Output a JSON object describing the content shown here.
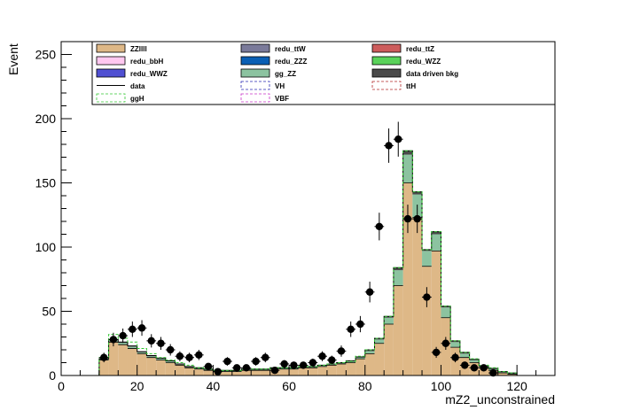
{
  "chart_data": {
    "type": "bar",
    "xlabel": "mZ2_unconstrained",
    "ylabel": "Event",
    "xlim": [
      0,
      130
    ],
    "ylim": [
      0,
      260
    ],
    "x_ticks": [
      0,
      20,
      40,
      60,
      80,
      100,
      120
    ],
    "y_ticks": [
      0,
      50,
      100,
      150,
      200,
      250
    ],
    "bin_width": 2.5,
    "bin_edges_start": 10,
    "grid": false,
    "legend": {
      "placement": "top",
      "columns": 3,
      "entries": [
        {
          "label": "ZZllll",
          "style": "fill",
          "color": "#deb887"
        },
        {
          "label": "redu_ttW",
          "style": "fill",
          "color": "#7a7a9a"
        },
        {
          "label": "redu_ttZ",
          "style": "fill",
          "color": "#cd5c5c"
        },
        {
          "label": "redu_bbH",
          "style": "fill",
          "color": "#ffc8f0"
        },
        {
          "label": "redu_ZZZ",
          "style": "fill",
          "color": "#0a5fb4"
        },
        {
          "label": "redu_WZZ",
          "style": "fill",
          "color": "#5ad25a"
        },
        {
          "label": "redu_WWZ",
          "style": "fill",
          "color": "#5050d2"
        },
        {
          "label": "gg_ZZ",
          "style": "fill",
          "color": "#8cc3a0"
        },
        {
          "label": "data driven bkg",
          "style": "fill",
          "color": "#4a4a4a"
        },
        {
          "label": "data",
          "style": "line",
          "color": "#000000"
        },
        {
          "label": "VH",
          "style": "dashed",
          "color": "#2a2ab4"
        },
        {
          "label": "ttH",
          "style": "dashed",
          "color": "#b4282a"
        },
        {
          "label": "ggH",
          "style": "dashed",
          "color": "#32c832"
        },
        {
          "label": "VBF",
          "style": "dashed",
          "color": "#c832c8"
        }
      ]
    },
    "series": [
      {
        "name": "ZZllll",
        "color": "#deb887",
        "values": [
          12,
          26,
          24,
          21,
          17,
          14,
          12,
          10,
          8,
          6,
          5,
          4,
          3,
          3,
          3,
          4,
          4,
          4,
          5,
          5,
          5,
          6,
          6,
          7,
          8,
          9,
          10,
          13,
          17,
          25,
          40,
          70,
          150,
          123,
          85,
          97,
          45,
          22,
          14,
          10,
          6,
          4,
          2,
          1
        ]
      },
      {
        "name": "gg_ZZ",
        "color": "#8cc3a0",
        "values": [
          0.5,
          1.5,
          1.5,
          1.5,
          1,
          1,
          1,
          1,
          0.5,
          0.5,
          0.5,
          0.5,
          0.5,
          0.5,
          0.5,
          0.5,
          0.5,
          0.5,
          0.5,
          0.5,
          0.5,
          0.5,
          0.5,
          0.5,
          0.5,
          0.5,
          1,
          1,
          2,
          3,
          5,
          12,
          22,
          18,
          12,
          13,
          8,
          4,
          3,
          2,
          1,
          1,
          0.5,
          0.5
        ]
      },
      {
        "name": "data driven bkg",
        "color": "#4a4a4a",
        "values": [
          0.5,
          0.5,
          0.5,
          0.5,
          0.5,
          0.5,
          0.5,
          0.5,
          0.5,
          0.5,
          0.5,
          0.5,
          0.5,
          0.5,
          0.5,
          0.5,
          0.5,
          0.5,
          0.5,
          0.5,
          0.5,
          0.5,
          0.5,
          0.5,
          0.5,
          0.5,
          0.5,
          0.5,
          1,
          1,
          1,
          2,
          3,
          2,
          1,
          2,
          1,
          1,
          1,
          0.5,
          0.5,
          0.5,
          0.5,
          0.5
        ]
      },
      {
        "name": "ggH",
        "color": "#32c832",
        "style": "dashed",
        "values": [
          14,
          32,
          29,
          26,
          21,
          17,
          14,
          12,
          10,
          8,
          6,
          5,
          4,
          4,
          4,
          5,
          5,
          5,
          6,
          6,
          6,
          7,
          7,
          8,
          9,
          10,
          11,
          15,
          20,
          29,
          46,
          84,
          175,
          143,
          98,
          112,
          54,
          27,
          18,
          13,
          8,
          6,
          3,
          2
        ]
      },
      {
        "name": "data",
        "color": "#000000",
        "style": "points",
        "x": [
          11.25,
          13.75,
          16.25,
          18.75,
          21.25,
          23.75,
          26.25,
          28.75,
          31.25,
          33.75,
          36.25,
          38.75,
          41.25,
          43.75,
          46.25,
          48.75,
          51.25,
          53.75,
          56.25,
          58.75,
          61.25,
          63.75,
          66.25,
          68.75,
          71.25,
          73.75,
          76.25,
          78.75,
          81.25,
          83.75,
          86.25,
          88.75,
          91.25,
          93.75,
          96.25,
          98.75,
          101.25,
          103.75,
          106.25,
          108.75,
          111.25,
          113.75,
          116.25
        ],
        "y": [
          14,
          28,
          31,
          36,
          37,
          27,
          25,
          20,
          15,
          14,
          16,
          7,
          3,
          11,
          6,
          6,
          11,
          14,
          4,
          9,
          8,
          8,
          10,
          15,
          12,
          19,
          36,
          40,
          65,
          116,
          179,
          184,
          122,
          122,
          61,
          18,
          25,
          14,
          8,
          6,
          6,
          2,
          0
        ]
      }
    ]
  }
}
